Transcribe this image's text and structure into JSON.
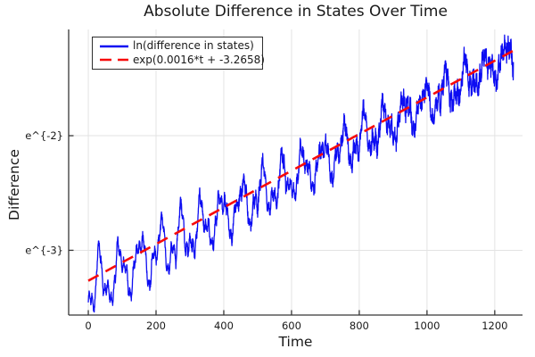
{
  "title": "Absolute Difference in States Over Time",
  "colors": {
    "series_blue": "#0d0df2",
    "fit_red": "#f70a0a",
    "grid": "#e3e3e3",
    "axis": "#363636",
    "text": "#191919"
  },
  "chart_data": {
    "type": "line",
    "title": "Absolute Difference in States Over Time",
    "xlabel": "Time",
    "ylabel": "Difference",
    "y_scale": "log (labels shown as powers of e)",
    "xlim": [
      -58,
      1282
    ],
    "ylim_ln": [
      -3.565,
      -1.073
    ],
    "data_t_range": [
      0,
      1255
    ],
    "grid": true,
    "legend_position": "top-left",
    "xticks": {
      "values": [
        0,
        200,
        400,
        600,
        800,
        1000,
        1200
      ],
      "labels": [
        "0",
        "200",
        "400",
        "600",
        "800",
        "1000",
        "1200"
      ]
    },
    "yticks": {
      "values": [
        -2,
        -3
      ],
      "labels": [
        "e^{-2}",
        "e^{-3}"
      ]
    },
    "fit": {
      "slope": 0.0016,
      "intercept": -3.2658
    },
    "series": [
      {
        "name": "ln(difference in states)",
        "color": "#0d0df2",
        "style": "solid",
        "width": 1.3,
        "generator": {
          "slope": 0.0016,
          "intercept": -3.2658,
          "t_start": 0,
          "t_end": 1255,
          "dt": 0.5,
          "amp0": 0.24,
          "amp1": -0.11,
          "osc_periods": [
            60,
            27,
            9.3
          ],
          "osc_phases": [
            -1.45,
            0.7,
            0
          ],
          "osc_weights": [
            1.0,
            0.45,
            0.05
          ],
          "dip_period": 60,
          "dip_t0": 20,
          "dip_floor": 0.22,
          "dip_depth0": 0.3,
          "dip_depth1": -0.16,
          "noise0": 0.035,
          "noise1": 0.075,
          "seed": 11,
          "vmin": -3.54,
          "vmax": -1.08
        }
      },
      {
        "name": "exp(0.0016*t + -3.2658)",
        "color": "#f70a0a",
        "style": "dashed",
        "width": 2.6,
        "dash": [
          13,
          9
        ],
        "slope": 0.0016,
        "intercept": -3.2658,
        "t_start": 0,
        "t_end": 1255
      }
    ]
  }
}
